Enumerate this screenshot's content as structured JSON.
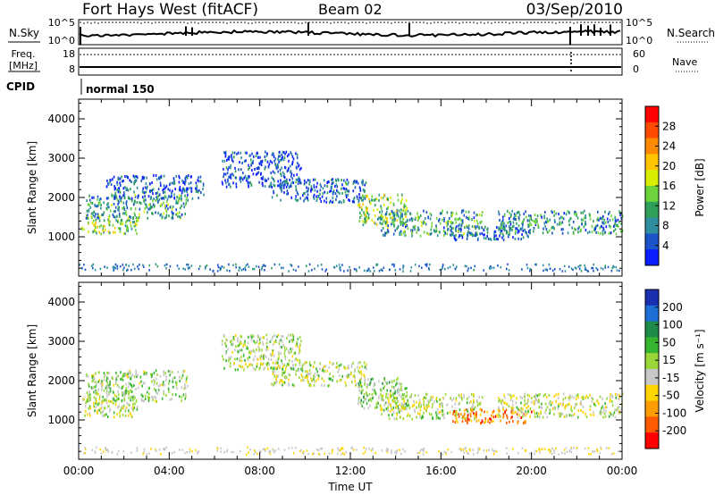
{
  "header": {
    "title": "Fort Hays West (fitACF)",
    "beam": "Beam 02",
    "date": "03/Sep/2010"
  },
  "noise_panel": {
    "left_label": "N.Sky",
    "left_ticks": [
      "10^5",
      "10^0"
    ],
    "right_ticks": [
      "10^5",
      "10^0"
    ],
    "right_label": "N.Search"
  },
  "freq_panel": {
    "left_label_line1": "Freq.",
    "left_label_line2": "[MHz]",
    "left_ticks": [
      "18",
      "8"
    ],
    "right_ticks": [
      "60",
      "0"
    ],
    "right_label": "Nave"
  },
  "cpid": {
    "label": "CPID",
    "mode": "normal 150"
  },
  "time_axis": {
    "xlabel": "Time UT",
    "ticks": [
      "00:00",
      "04:00",
      "08:00",
      "12:00",
      "16:00",
      "20:00",
      "00:00"
    ]
  },
  "power_colorbar": {
    "label": "Power [dB]",
    "ticks": [
      "28",
      "24",
      "20",
      "16",
      "12",
      "8",
      "4"
    ],
    "colors": [
      "#ff0000",
      "#ff4a00",
      "#ff8a00",
      "#ffc400",
      "#d8ee00",
      "#6cd33c",
      "#2fa05a",
      "#2f8ea0",
      "#1a54c8",
      "#0a1eff"
    ]
  },
  "velocity_colorbar": {
    "label": "Velocity [m s⁻¹]",
    "ticks": [
      "200",
      "100",
      "50",
      "15",
      "-15",
      "-50",
      "-100",
      "-200"
    ],
    "colors": [
      "#1a2fb0",
      "#1d6fd6",
      "#1e8a4a",
      "#35b530",
      "#9ad83a",
      "#c8c8c8",
      "#ffd400",
      "#ff9c00",
      "#ff5a00",
      "#ff0000"
    ]
  },
  "chart_data": [
    {
      "type": "heatmap",
      "title": "Power",
      "xlabel": "Time UT",
      "ylabel": "Slant Range [km]",
      "xlim": [
        0,
        24
      ],
      "ylim": [
        0,
        4500
      ],
      "yticks": [
        1000,
        2000,
        3000,
        4000
      ],
      "colorbar_label": "Power [dB]",
      "clim": [
        0,
        32
      ],
      "scatter_regions": [
        {
          "t": [
            0.1,
            2.6
          ],
          "range": [
            1100,
            1600
          ],
          "value": 14
        },
        {
          "t": [
            0.3,
            4.8
          ],
          "range": [
            1500,
            2100
          ],
          "value": 10
        },
        {
          "t": [
            1.2,
            5.5
          ],
          "range": [
            2000,
            2600
          ],
          "value": 5
        },
        {
          "t": [
            6.3,
            9.8
          ],
          "range": [
            2300,
            3200
          ],
          "value": 4
        },
        {
          "t": [
            8.5,
            12.7
          ],
          "range": [
            1900,
            2500
          ],
          "value": 6
        },
        {
          "t": [
            12.3,
            14.5
          ],
          "range": [
            1300,
            2100
          ],
          "value": 14
        },
        {
          "t": [
            13.3,
            17.8
          ],
          "range": [
            1050,
            1700
          ],
          "value": 10
        },
        {
          "t": [
            16.5,
            20.0
          ],
          "range": [
            950,
            1300
          ],
          "value": 6
        },
        {
          "t": [
            18.5,
            24.0
          ],
          "range": [
            1100,
            1700
          ],
          "value": 9
        }
      ]
    },
    {
      "type": "heatmap",
      "title": "Velocity",
      "xlabel": "Time UT",
      "ylabel": "Slant Range [km]",
      "xlim": [
        0,
        24
      ],
      "ylim": [
        0,
        4500
      ],
      "yticks": [
        1000,
        2000,
        3000,
        4000
      ],
      "colorbar_label": "Velocity [m s⁻¹]",
      "clim": [
        -250,
        250
      ],
      "scatter_regions": [
        {
          "t": [
            0.1,
            2.6
          ],
          "range": [
            1100,
            1600
          ],
          "value": -10
        },
        {
          "t": [
            0.3,
            4.8
          ],
          "range": [
            1500,
            2300
          ],
          "value": 20
        },
        {
          "t": [
            6.3,
            9.8
          ],
          "range": [
            2300,
            3200
          ],
          "value": 0
        },
        {
          "t": [
            8.5,
            12.7
          ],
          "range": [
            1900,
            2500
          ],
          "value": -5
        },
        {
          "t": [
            12.3,
            14.5
          ],
          "range": [
            1300,
            2100
          ],
          "value": 30
        },
        {
          "t": [
            13.3,
            17.8
          ],
          "range": [
            1050,
            1700
          ],
          "value": -10
        },
        {
          "t": [
            16.5,
            20.0
          ],
          "range": [
            950,
            1300
          ],
          "value": -150
        },
        {
          "t": [
            18.5,
            24.0
          ],
          "range": [
            1100,
            1700
          ],
          "value": -20
        }
      ]
    }
  ]
}
